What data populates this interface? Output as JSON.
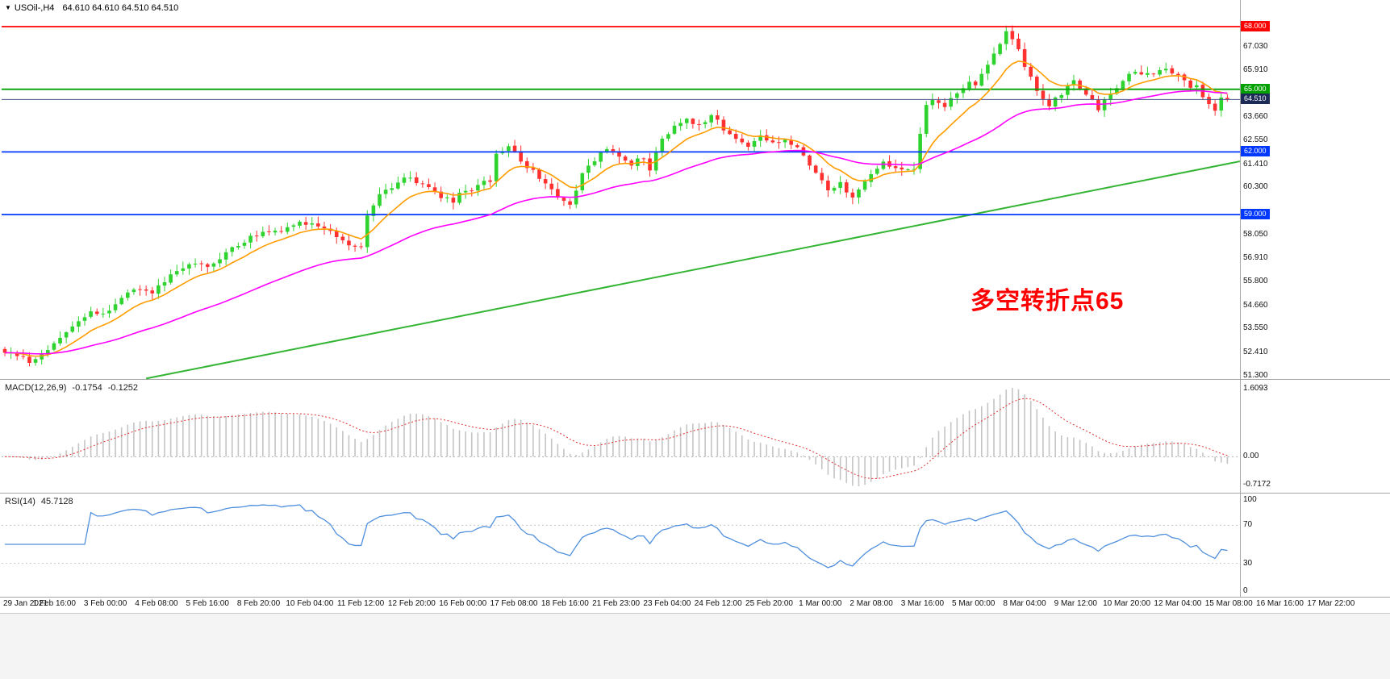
{
  "header": {
    "dropdown_icon": "▼",
    "symbol": "USOil-,H4",
    "ohlc": "64.610 64.610 64.510 64.510"
  },
  "chart_data": {
    "type": "candlestick",
    "title": "USOil-,H4",
    "timeframe": "H4",
    "price_axis": {
      "labels": [
        "67.030",
        "65.910",
        "63.660",
        "62.550",
        "61.410",
        "60.300",
        "58.050",
        "56.910",
        "55.800",
        "54.660",
        "53.550",
        "52.410",
        "51.300"
      ]
    },
    "time_labels": [
      "29 Jan 2021",
      "1 Feb 16:00",
      "3 Feb 00:00",
      "4 Feb 08:00",
      "5 Feb 16:00",
      "8 Feb 20:00",
      "10 Feb 04:00",
      "11 Feb 12:00",
      "12 Feb 20:00",
      "16 Feb 00:00",
      "17 Feb 08:00",
      "18 Feb 16:00",
      "21 Feb 23:00",
      "23 Feb 04:00",
      "24 Feb 12:00",
      "25 Feb 20:00",
      "1 Mar 00:00",
      "2 Mar 08:00",
      "3 Mar 16:00",
      "5 Mar 00:00",
      "8 Mar 04:00",
      "9 Mar 12:00",
      "10 Mar 20:00",
      "12 Mar 04:00",
      "15 Mar 08:00",
      "16 Mar 16:00",
      "17 Mar 22:00"
    ],
    "horizontal_lines": [
      {
        "price": 68.0,
        "label": "68.000",
        "color": "#ff0000"
      },
      {
        "price": 65.0,
        "label": "65.000",
        "color": "#00a000"
      },
      {
        "price": 62.0,
        "label": "62.000",
        "color": "#0038ff"
      },
      {
        "price": 59.0,
        "label": "59.000",
        "color": "#0038ff"
      }
    ],
    "current_price": {
      "value": 64.51,
      "label": "64.510",
      "line_color": "#46558c",
      "badge_color": "#1c2b55"
    },
    "candles": {
      "count": 200,
      "seed": 20210317,
      "noise": 0.13,
      "bull_color": "#2fd32f",
      "bear_color": "#ff3030",
      "anchors": [
        [
          0,
          52.45
        ],
        [
          2,
          52.2
        ],
        [
          4,
          51.95
        ],
        [
          6,
          52.35
        ],
        [
          9,
          53.2
        ],
        [
          12,
          53.9
        ],
        [
          14,
          54.35
        ],
        [
          16,
          54.15
        ],
        [
          19,
          55.1
        ],
        [
          22,
          55.5
        ],
        [
          24,
          55.2
        ],
        [
          27,
          56.1
        ],
        [
          30,
          56.65
        ],
        [
          33,
          56.5
        ],
        [
          36,
          57.2
        ],
        [
          39,
          57.7
        ],
        [
          42,
          58.25
        ],
        [
          45,
          58.1
        ],
        [
          48,
          58.65
        ],
        [
          51,
          58.45
        ],
        [
          54,
          58.0
        ],
        [
          56,
          57.65
        ],
        [
          58,
          57.45
        ],
        [
          59,
          58.9
        ],
        [
          61,
          60.1
        ],
        [
          63,
          60.35
        ],
        [
          65,
          60.85
        ],
        [
          67,
          60.55
        ],
        [
          69,
          60.2
        ],
        [
          71,
          59.85
        ],
        [
          73,
          59.7
        ],
        [
          75,
          60.15
        ],
        [
          77,
          60.35
        ],
        [
          79,
          60.65
        ],
        [
          80,
          61.9
        ],
        [
          82,
          62.35
        ],
        [
          84,
          61.6
        ],
        [
          86,
          61.1
        ],
        [
          88,
          60.4
        ],
        [
          90,
          59.8
        ],
        [
          92,
          59.55
        ],
        [
          94,
          60.9
        ],
        [
          96,
          61.6
        ],
        [
          98,
          62.25
        ],
        [
          100,
          61.85
        ],
        [
          102,
          61.4
        ],
        [
          104,
          61.8
        ],
        [
          105,
          61.2
        ],
        [
          107,
          62.6
        ],
        [
          109,
          63.35
        ],
        [
          111,
          63.6
        ],
        [
          113,
          63.3
        ],
        [
          115,
          63.75
        ],
        [
          117,
          63.1
        ],
        [
          119,
          62.5
        ],
        [
          121,
          62.3
        ],
        [
          123,
          62.7
        ],
        [
          125,
          62.4
        ],
        [
          127,
          62.6
        ],
        [
          129,
          62.2
        ],
        [
          131,
          61.4
        ],
        [
          133,
          60.6
        ],
        [
          134,
          60.2
        ],
        [
          136,
          60.5
        ],
        [
          138,
          59.85
        ],
        [
          139,
          60.3
        ],
        [
          141,
          61.0
        ],
        [
          143,
          61.45
        ],
        [
          145,
          61.2
        ],
        [
          147,
          61.05
        ],
        [
          148,
          61.3
        ],
        [
          149,
          62.8
        ],
        [
          150,
          64.15
        ],
        [
          151,
          64.4
        ],
        [
          153,
          64.1
        ],
        [
          155,
          64.9
        ],
        [
          157,
          65.45
        ],
        [
          158,
          65.1
        ],
        [
          160,
          66.3
        ],
        [
          162,
          67.15
        ],
        [
          163,
          67.9
        ],
        [
          165,
          66.8
        ],
        [
          167,
          65.6
        ],
        [
          168,
          64.9
        ],
        [
          170,
          64.3
        ],
        [
          172,
          64.8
        ],
        [
          174,
          65.35
        ],
        [
          175,
          64.95
        ],
        [
          177,
          64.4
        ],
        [
          178,
          63.95
        ],
        [
          180,
          64.85
        ],
        [
          182,
          65.5
        ],
        [
          184,
          65.9
        ],
        [
          186,
          65.7
        ],
        [
          188,
          65.95
        ],
        [
          190,
          65.8
        ],
        [
          192,
          65.4
        ],
        [
          193,
          64.95
        ],
        [
          194,
          65.15
        ],
        [
          195,
          64.75
        ],
        [
          196,
          64.3
        ],
        [
          197,
          64.1
        ],
        [
          198,
          64.55
        ],
        [
          199,
          64.51
        ]
      ]
    },
    "moving_averages": [
      {
        "name": "fast-ma",
        "period": 10,
        "color": "#ff9d00"
      },
      {
        "name": "slow-ma",
        "period": 42,
        "color": "#ff00ff"
      }
    ],
    "trend_line": {
      "from_index": 23,
      "from_price": 51.15,
      "to_index": 200,
      "to_price": 61.55,
      "color": "#33b533"
    },
    "macd": {
      "label": "MACD(12,26,9)",
      "value_main": "-0.1754",
      "value_signal": "-0.1252",
      "fast": 12,
      "slow": 26,
      "signal": 9,
      "axis_labels": [
        "1.6093",
        "0.00",
        "-0.7172"
      ],
      "histogram_color": "#c4c4c4",
      "signal_color": "#e03030"
    },
    "rsi": {
      "label": "RSI(14)",
      "value": "45.7128",
      "period": 14,
      "axis_labels": [
        "100",
        "70",
        "30",
        "0"
      ],
      "axis_values": [
        100,
        70,
        30,
        0
      ],
      "levels": [
        70,
        30
      ],
      "color": "#4f8fdd"
    },
    "annotation": {
      "text": "多空转折点65",
      "color": "#ff0000"
    }
  }
}
